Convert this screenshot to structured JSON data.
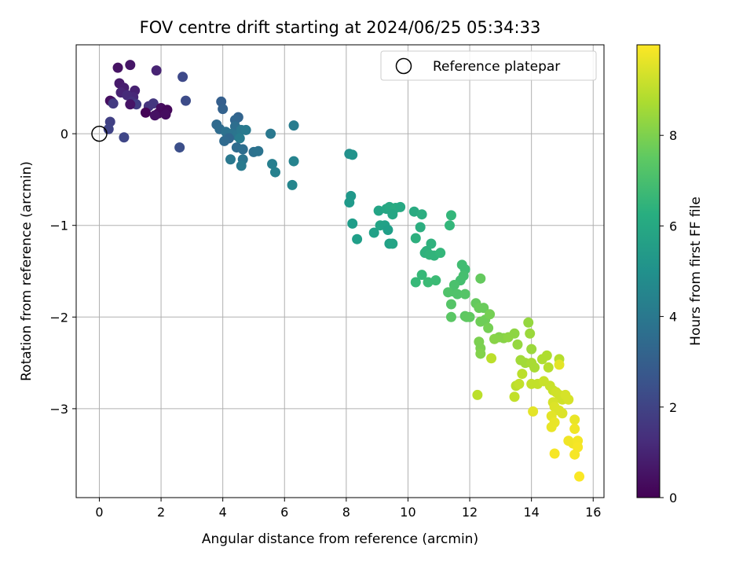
{
  "chart_data": {
    "type": "scatter",
    "title": "FOV centre drift starting at 2024/06/25 05:34:33",
    "xlabel": "Angular distance from reference (arcmin)",
    "ylabel": "Rotation from reference (arcmin)",
    "xlim": [
      -0.75,
      16.35
    ],
    "ylim": [
      -3.97,
      0.97
    ],
    "xticks": [
      0,
      2,
      4,
      6,
      8,
      10,
      12,
      14,
      16
    ],
    "yticks": [
      0,
      -1,
      -2,
      -3
    ],
    "grid": true,
    "colormap": "viridis",
    "colorbar": {
      "label": "Hours from first FF file",
      "range": [
        0,
        10
      ],
      "ticks": [
        0,
        2,
        4,
        6,
        8
      ]
    },
    "legend": {
      "position": "top-right",
      "entries": [
        {
          "label": "Reference platepar",
          "marker": "open-circle"
        }
      ]
    },
    "reference_point": {
      "x": 0,
      "y": 0
    },
    "points": [
      [
        0.6,
        0.72,
        0.5
      ],
      [
        1.0,
        0.75,
        0.6
      ],
      [
        1.85,
        0.69,
        1.0
      ],
      [
        0.65,
        0.55,
        0.7
      ],
      [
        0.8,
        0.5,
        0.8
      ],
      [
        1.15,
        0.47,
        0.9
      ],
      [
        0.7,
        0.45,
        1.0
      ],
      [
        1.1,
        0.4,
        1.1
      ],
      [
        0.9,
        0.42,
        1.2
      ],
      [
        0.4,
        0.35,
        1.3
      ],
      [
        0.35,
        0.36,
        0.4
      ],
      [
        1.05,
        0.35,
        1.4
      ],
      [
        1.6,
        0.3,
        1.5
      ],
      [
        1.75,
        0.33,
        1.6
      ],
      [
        0.45,
        0.33,
        1.7
      ],
      [
        1.2,
        0.32,
        1.8
      ],
      [
        2.0,
        0.28,
        0.3
      ],
      [
        2.2,
        0.26,
        0.2
      ],
      [
        1.5,
        0.23,
        0.1
      ],
      [
        1.9,
        0.22,
        0.25
      ],
      [
        2.15,
        0.21,
        0.35
      ],
      [
        1.8,
        0.2,
        0.45
      ],
      [
        1.0,
        0.32,
        0.55
      ],
      [
        0.35,
        0.13,
        1.9
      ],
      [
        0.3,
        0.05,
        2.0
      ],
      [
        0.8,
        -0.04,
        2.1
      ],
      [
        2.7,
        0.62,
        2.2
      ],
      [
        2.8,
        0.36,
        2.3
      ],
      [
        2.6,
        -0.15,
        2.4
      ],
      [
        3.95,
        0.35,
        3.0
      ],
      [
        4.0,
        0.27,
        3.1
      ],
      [
        4.5,
        0.18,
        3.2
      ],
      [
        4.4,
        0.15,
        3.3
      ],
      [
        3.8,
        0.1,
        3.4
      ],
      [
        3.9,
        0.05,
        3.5
      ],
      [
        4.4,
        0.08,
        3.6
      ],
      [
        4.1,
        0.02,
        3.7
      ],
      [
        4.3,
        0.0,
        3.8
      ],
      [
        4.45,
        -0.02,
        3.9
      ],
      [
        4.6,
        0.04,
        4.0
      ],
      [
        4.75,
        0.04,
        4.1
      ],
      [
        4.55,
        -0.05,
        4.2
      ],
      [
        4.2,
        -0.05,
        3.3
      ],
      [
        4.05,
        -0.08,
        3.4
      ],
      [
        4.45,
        -0.15,
        3.5
      ],
      [
        4.65,
        -0.17,
        3.6
      ],
      [
        5.0,
        -0.2,
        3.7
      ],
      [
        5.15,
        -0.19,
        3.8
      ],
      [
        4.65,
        -0.28,
        3.9
      ],
      [
        4.25,
        -0.28,
        4.0
      ],
      [
        4.6,
        -0.35,
        4.1
      ],
      [
        5.55,
        0.0,
        4.0
      ],
      [
        6.3,
        0.09,
        4.2
      ],
      [
        5.6,
        -0.33,
        4.3
      ],
      [
        5.7,
        -0.42,
        4.4
      ],
      [
        6.3,
        -0.3,
        4.5
      ],
      [
        6.25,
        -0.56,
        4.6
      ],
      [
        8.1,
        -0.22,
        5.0
      ],
      [
        8.2,
        -0.23,
        5.1
      ],
      [
        8.15,
        -0.68,
        5.3
      ],
      [
        8.1,
        -0.75,
        5.4
      ],
      [
        8.2,
        -0.98,
        5.5
      ],
      [
        8.35,
        -1.15,
        5.6
      ],
      [
        8.9,
        -1.08,
        5.7
      ],
      [
        9.05,
        -0.84,
        5.8
      ],
      [
        9.3,
        -0.82,
        5.9
      ],
      [
        9.4,
        -0.8,
        6.0
      ],
      [
        9.6,
        -0.81,
        6.1
      ],
      [
        9.75,
        -0.8,
        6.0
      ],
      [
        9.5,
        -0.88,
        5.9
      ],
      [
        9.1,
        -1.0,
        5.8
      ],
      [
        9.25,
        -1.0,
        5.7
      ],
      [
        9.35,
        -1.05,
        5.6
      ],
      [
        9.4,
        -1.2,
        5.7
      ],
      [
        9.5,
        -1.2,
        5.8
      ],
      [
        10.2,
        -0.85,
        6.1
      ],
      [
        10.45,
        -0.88,
        6.2
      ],
      [
        10.4,
        -1.02,
        6.2
      ],
      [
        10.25,
        -1.14,
        6.3
      ],
      [
        10.6,
        -1.28,
        6.3
      ],
      [
        10.75,
        -1.2,
        6.4
      ],
      [
        10.55,
        -1.3,
        6.4
      ],
      [
        10.7,
        -1.32,
        6.5
      ],
      [
        10.85,
        -1.33,
        6.5
      ],
      [
        11.05,
        -1.3,
        6.6
      ],
      [
        11.4,
        -0.89,
        6.6
      ],
      [
        11.35,
        -1.0,
        6.6
      ],
      [
        10.45,
        -1.54,
        6.7
      ],
      [
        10.25,
        -1.62,
        6.7
      ],
      [
        10.65,
        -1.62,
        6.8
      ],
      [
        10.9,
        -1.6,
        6.8
      ],
      [
        11.75,
        -1.43,
        6.9
      ],
      [
        11.85,
        -1.48,
        6.9
      ],
      [
        11.8,
        -1.55,
        7.0
      ],
      [
        11.7,
        -1.6,
        7.0
      ],
      [
        11.5,
        -1.65,
        7.1
      ],
      [
        11.45,
        -1.72,
        7.1
      ],
      [
        11.3,
        -1.73,
        7.2
      ],
      [
        11.6,
        -1.75,
        7.2
      ],
      [
        11.85,
        -1.75,
        7.3
      ],
      [
        11.4,
        -1.86,
        7.3
      ],
      [
        11.4,
        -2.0,
        7.4
      ],
      [
        11.85,
        -1.99,
        7.4
      ],
      [
        11.9,
        -2.0,
        7.5
      ],
      [
        12.0,
        -2.0,
        7.5
      ],
      [
        12.2,
        -1.85,
        7.6
      ],
      [
        12.35,
        -1.58,
        7.6
      ],
      [
        12.3,
        -1.9,
        7.7
      ],
      [
        12.45,
        -1.9,
        7.7
      ],
      [
        12.35,
        -2.05,
        7.8
      ],
      [
        12.5,
        -2.03,
        7.8
      ],
      [
        12.65,
        -1.97,
        7.9
      ],
      [
        12.6,
        -2.12,
        7.9
      ],
      [
        12.3,
        -2.27,
        8.0
      ],
      [
        12.35,
        -2.34,
        8.0
      ],
      [
        12.35,
        -2.4,
        8.1
      ],
      [
        12.95,
        -2.22,
        8.1
      ],
      [
        12.8,
        -2.24,
        8.2
      ],
      [
        13.1,
        -2.23,
        8.2
      ],
      [
        13.25,
        -2.22,
        8.3
      ],
      [
        13.45,
        -2.18,
        8.3
      ],
      [
        13.55,
        -2.3,
        8.4
      ],
      [
        13.9,
        -2.06,
        8.4
      ],
      [
        13.95,
        -2.18,
        8.5
      ],
      [
        14.0,
        -2.35,
        8.5
      ],
      [
        13.65,
        -2.47,
        8.6
      ],
      [
        13.8,
        -2.5,
        8.6
      ],
      [
        14.0,
        -2.5,
        8.7
      ],
      [
        14.1,
        -2.55,
        8.7
      ],
      [
        14.35,
        -2.46,
        8.8
      ],
      [
        14.5,
        -2.42,
        8.8
      ],
      [
        14.55,
        -2.55,
        8.9
      ],
      [
        14.9,
        -2.46,
        8.9
      ],
      [
        13.7,
        -2.62,
        9.0
      ],
      [
        12.25,
        -2.85,
        9.0
      ],
      [
        12.7,
        -2.45,
        9.0
      ],
      [
        13.5,
        -2.75,
        9.0
      ],
      [
        13.6,
        -2.73,
        9.1
      ],
      [
        13.45,
        -2.87,
        9.1
      ],
      [
        14.0,
        -2.73,
        9.1
      ],
      [
        14.2,
        -2.73,
        9.1
      ],
      [
        14.4,
        -2.7,
        9.2
      ],
      [
        14.6,
        -2.75,
        9.2
      ],
      [
        14.7,
        -2.8,
        9.2
      ],
      [
        14.8,
        -2.82,
        9.3
      ],
      [
        14.9,
        -2.85,
        9.3
      ],
      [
        15.0,
        -2.9,
        9.3
      ],
      [
        15.1,
        -2.85,
        9.4
      ],
      [
        15.2,
        -2.9,
        9.4
      ],
      [
        14.7,
        -2.93,
        9.4
      ],
      [
        14.75,
        -2.98,
        9.5
      ],
      [
        14.9,
        -3.02,
        9.5
      ],
      [
        15.0,
        -3.05,
        9.5
      ],
      [
        14.9,
        -2.52,
        9.6
      ],
      [
        14.05,
        -3.03,
        9.6
      ],
      [
        14.65,
        -3.08,
        9.6
      ],
      [
        14.75,
        -3.15,
        9.7
      ],
      [
        14.65,
        -3.2,
        9.7
      ],
      [
        15.4,
        -3.12,
        9.7
      ],
      [
        15.4,
        -3.22,
        9.8
      ],
      [
        15.2,
        -3.35,
        9.8
      ],
      [
        15.35,
        -3.38,
        9.8
      ],
      [
        15.5,
        -3.35,
        9.85
      ],
      [
        15.5,
        -3.42,
        9.9
      ],
      [
        15.4,
        -3.5,
        9.9
      ],
      [
        14.75,
        -3.49,
        9.9
      ],
      [
        15.55,
        -3.74,
        9.95
      ]
    ]
  }
}
